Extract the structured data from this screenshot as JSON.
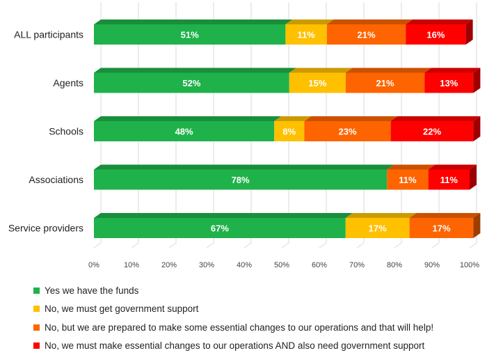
{
  "chart_data": {
    "type": "bar",
    "orientation": "horizontal",
    "stacked": true,
    "style": "3d",
    "categories": [
      "ALL participants",
      "Agents",
      "Schools",
      "Associations",
      "Service providers"
    ],
    "series": [
      {
        "name": "Yes we have the funds",
        "color": "#1fb24a",
        "values": [
          51,
          52,
          48,
          78,
          67
        ],
        "labels": [
          "51%",
          "52%",
          "48%",
          "78%",
          "67%"
        ]
      },
      {
        "name": "No, we must get government support",
        "color": "#ffc000",
        "values": [
          11,
          15,
          8,
          0,
          17
        ],
        "labels": [
          "11%",
          "15%",
          "8%",
          "",
          "17%"
        ]
      },
      {
        "name": "No, but we are prepared to make some essential changes to our operations and that will help!",
        "color": "#fe6400",
        "values": [
          21,
          21,
          23,
          11,
          17
        ],
        "labels": [
          "21%",
          "21%",
          "23%",
          "11%",
          "17%"
        ]
      },
      {
        "name": "No, we must make essential changes to our operations AND also need government support",
        "color": "#ff0000",
        "values": [
          16,
          13,
          22,
          11,
          0
        ],
        "labels": [
          "16%",
          "13%",
          "22%",
          "11%",
          ""
        ]
      }
    ],
    "xlim": [
      0,
      100
    ],
    "x_ticks": [
      "0%",
      "10%",
      "20%",
      "30%",
      "40%",
      "50%",
      "60%",
      "70%",
      "80%",
      "90%",
      "100%"
    ],
    "grid": true,
    "legend_position": "bottom",
    "title": "",
    "xlabel": "",
    "ylabel": ""
  }
}
